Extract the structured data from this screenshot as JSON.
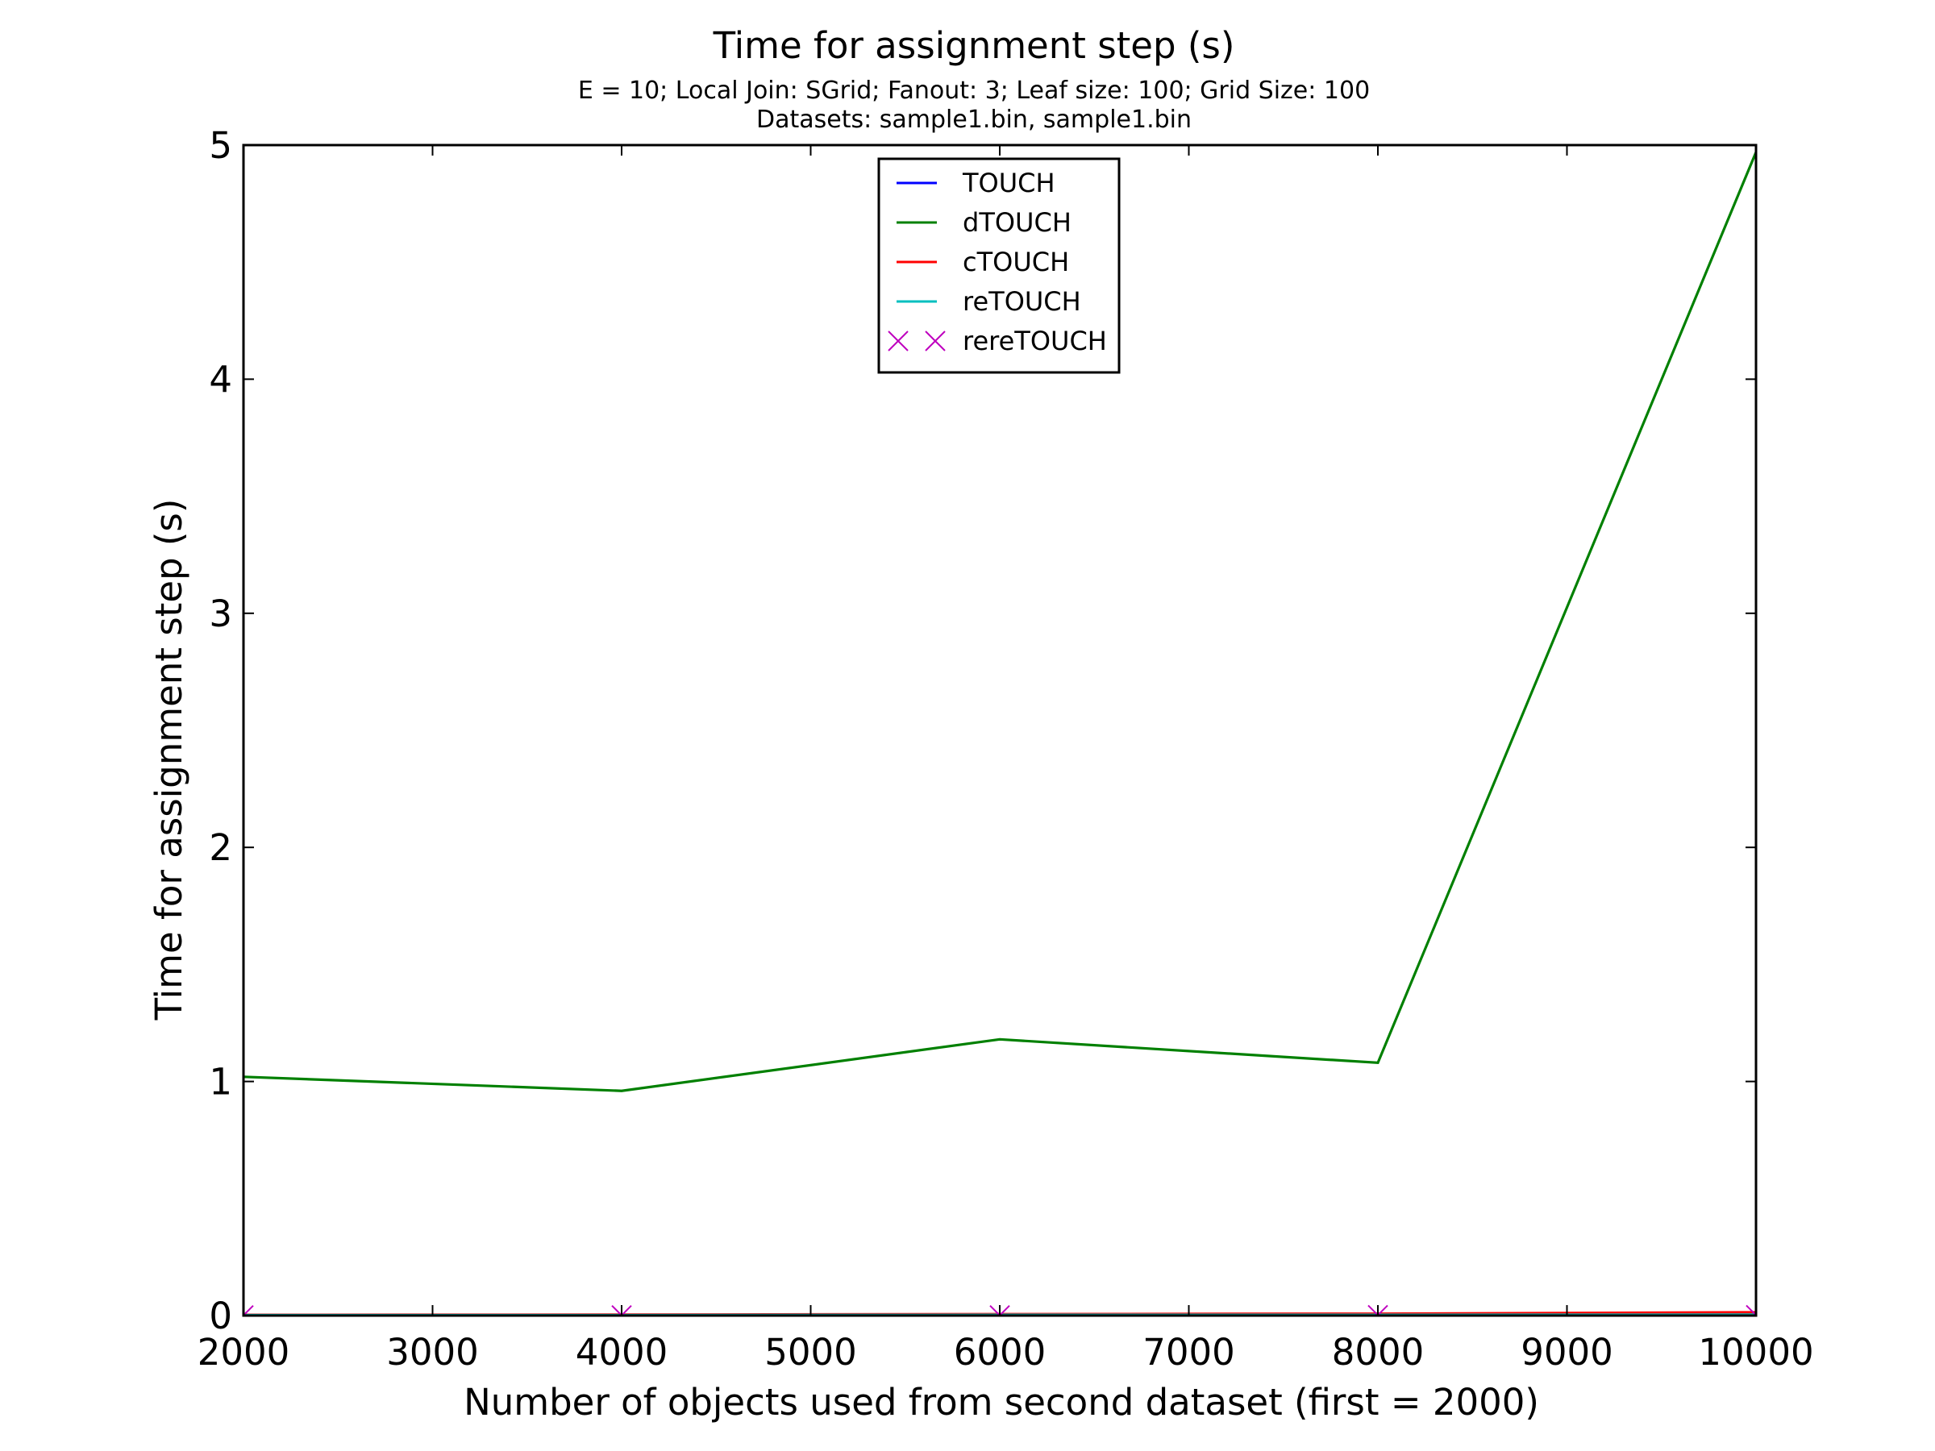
{
  "chart_data": {
    "type": "line",
    "title": "Time for assignment step (s)",
    "subtitle_lines": [
      "E = 10; Local Join: SGrid; Fanout: 3; Leaf size: 100; Grid Size: 100",
      "Datasets: sample1.bin, sample1.bin"
    ],
    "xlabel": "Number of objects used from second dataset (first = 2000)",
    "ylabel": "Time for assignment step (s)",
    "xlim": [
      2000,
      10000
    ],
    "ylim": [
      0,
      5
    ],
    "xticks": [
      2000,
      3000,
      4000,
      5000,
      6000,
      7000,
      8000,
      9000,
      10000
    ],
    "yticks": [
      0,
      1,
      2,
      3,
      4,
      5
    ],
    "x": [
      2000,
      4000,
      6000,
      8000,
      10000
    ],
    "legend_position": "top-center",
    "grid": false,
    "series": [
      {
        "name": "TOUCH",
        "color": "#0000ff",
        "style": "line",
        "values": [
          0.002,
          0.002,
          0.003,
          0.003,
          0.004
        ]
      },
      {
        "name": "dTOUCH",
        "color": "#008000",
        "style": "line",
        "values": [
          1.02,
          0.96,
          1.18,
          1.08,
          4.97
        ]
      },
      {
        "name": "cTOUCH",
        "color": "#ff0000",
        "style": "line",
        "values": [
          0.003,
          0.004,
          0.006,
          0.008,
          0.014
        ]
      },
      {
        "name": "reTOUCH",
        "color": "#00bfbf",
        "style": "line",
        "values": [
          0.002,
          0.002,
          0.003,
          0.003,
          0.004
        ]
      },
      {
        "name": "rereTOUCH",
        "color": "#bf00bf",
        "style": "x-marker",
        "values": [
          0.001,
          0.001,
          0.001,
          0.002,
          0.002
        ]
      }
    ]
  }
}
